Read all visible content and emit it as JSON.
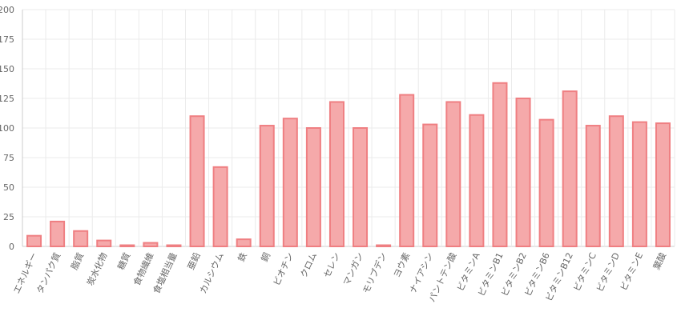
{
  "chart_data": {
    "type": "bar",
    "categories": [
      "エネルギー",
      "タンパク質",
      "脂質",
      "炭水化物",
      "糖質",
      "食物繊維",
      "食塩相当量",
      "亜鉛",
      "カルシウム",
      "鉄",
      "銅",
      "ビオチン",
      "クロム",
      "セレン",
      "マンガン",
      "モリブデン",
      "ヨウ素",
      "ナイアシン",
      "パントテン酸",
      "ビタミンA",
      "ビタミンB1",
      "ビタミンB2",
      "ビタミンB6",
      "ビタミンB12",
      "ビタミンC",
      "ビタミンD",
      "ビタミンE",
      "葉酸"
    ],
    "values": [
      9,
      21,
      13,
      5,
      1,
      3,
      1,
      110,
      67,
      6,
      102,
      108,
      100,
      122,
      100,
      1,
      128,
      103,
      122,
      111,
      138,
      125,
      107,
      131,
      102,
      110,
      105,
      104
    ],
    "ylim": [
      0,
      200
    ],
    "yticks": [
      0,
      25,
      50,
      75,
      100,
      125,
      150,
      175,
      200
    ],
    "grid": true,
    "colors": {
      "bar_fill": "#f5a9aa",
      "bar_stroke": "#ef7f82",
      "grid": "#ebebeb",
      "axis": "#cccccc"
    }
  }
}
